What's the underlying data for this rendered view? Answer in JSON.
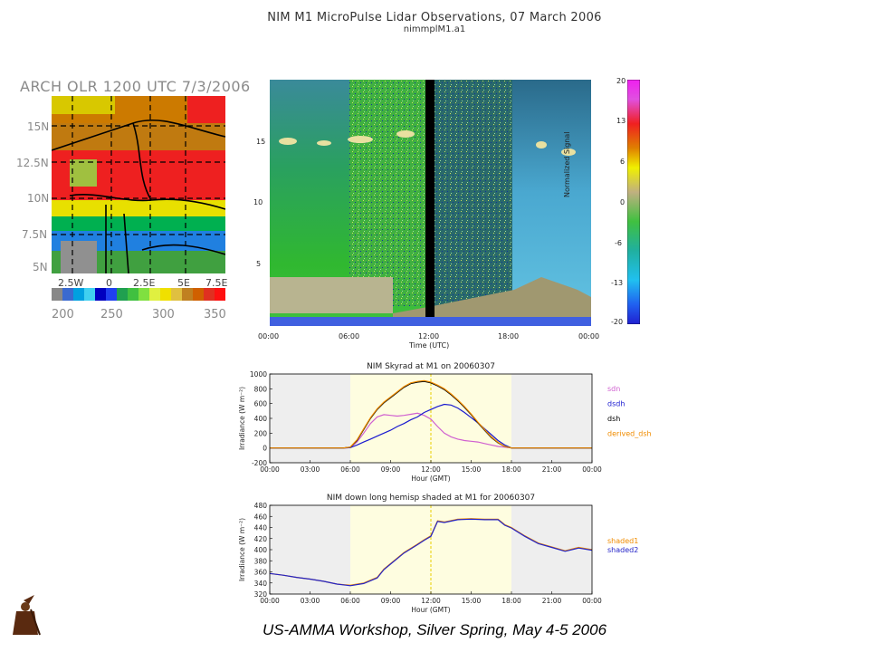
{
  "header": {
    "title": "NIM M1 MicroPulse Lidar Observations, 07 March 2006",
    "subtitle": "nimmplM1.a1"
  },
  "olr_map": {
    "title": "ARCH OLR 1200 UTC 7/3/2006",
    "lat_labels": [
      "15N",
      "12.5N",
      "10N",
      "7.5N",
      "5N"
    ],
    "lon_labels": [
      "2.5W",
      "0",
      "2.5E",
      "5E",
      "7.5E"
    ],
    "colorbar_labels": [
      "200",
      "250",
      "300",
      "350"
    ]
  },
  "lidar": {
    "xlabel": "Time (UTC)",
    "x_ticks": [
      "00:00",
      "06:00",
      "12:00",
      "18:00",
      "00:00"
    ],
    "y_ticks": [
      "5",
      "10",
      "15"
    ],
    "colorbar_title": "Normalized Signal",
    "colorbar_ticks": [
      "20",
      "13",
      "6",
      "0",
      "-6",
      "-13",
      "-20"
    ]
  },
  "colors": {
    "day_shade": "#fefde0",
    "night_shade": "#eeeeee",
    "sdn": "#d060d0",
    "dsdh": "#1a1ad0",
    "dsh": "#000000",
    "derived_dsh": "#f08c00",
    "shaded1": "#f08c00",
    "shaded2": "#2424c8",
    "noon_line": "#e8d000"
  },
  "chart_data": [
    {
      "type": "line",
      "title": "NIM Skyrad at M1 on 20060307",
      "xlabel": "Hour (GMT)",
      "ylabel": "Irradiance (W m⁻²)",
      "xlim": [
        0,
        24
      ],
      "ylim": [
        -200,
        1000
      ],
      "x_tick_labels": [
        "00:00",
        "03:00",
        "06:00",
        "09:00",
        "12:00",
        "15:00",
        "18:00",
        "21:00",
        "00:00"
      ],
      "y_tick_labels": [
        "-200",
        "0",
        "200",
        "400",
        "600",
        "800",
        "1000"
      ],
      "x": [
        0,
        5.5,
        6,
        6.5,
        7,
        7.5,
        8,
        8.5,
        9,
        9.5,
        10,
        10.5,
        11,
        11.5,
        12,
        12.5,
        13,
        13.5,
        14,
        14.5,
        15,
        15.5,
        16,
        16.5,
        17,
        17.5,
        18,
        24
      ],
      "series": [
        {
          "name": "sdn",
          "values": [
            0,
            0,
            5,
            80,
            200,
            330,
            420,
            450,
            440,
            430,
            440,
            455,
            470,
            440,
            390,
            290,
            200,
            150,
            120,
            100,
            90,
            80,
            60,
            40,
            20,
            10,
            0,
            0
          ]
        },
        {
          "name": "dsdh",
          "values": [
            0,
            0,
            5,
            40,
            80,
            120,
            160,
            200,
            240,
            290,
            330,
            380,
            420,
            480,
            520,
            560,
            590,
            580,
            540,
            480,
            410,
            340,
            260,
            180,
            100,
            40,
            0,
            0
          ]
        },
        {
          "name": "dsh",
          "values": [
            0,
            0,
            10,
            100,
            250,
            400,
            520,
            610,
            680,
            750,
            820,
            870,
            890,
            900,
            880,
            840,
            790,
            720,
            640,
            550,
            450,
            340,
            240,
            140,
            70,
            20,
            0,
            0
          ]
        },
        {
          "name": "derived_dsh",
          "values": [
            0,
            0,
            12,
            110,
            260,
            410,
            530,
            620,
            690,
            760,
            830,
            880,
            900,
            910,
            890,
            850,
            800,
            730,
            650,
            560,
            460,
            350,
            250,
            150,
            75,
            22,
            0,
            0
          ]
        }
      ],
      "day_span": [
        6,
        18
      ],
      "noon_marker": 12
    },
    {
      "type": "line",
      "title": "NIM down long hemisp shaded at M1 for 20060307",
      "xlabel": "Hour (GMT)",
      "ylabel": "Irradiance (W m⁻²)",
      "xlim": [
        0,
        24
      ],
      "ylim": [
        320,
        480
      ],
      "x_tick_labels": [
        "00:00",
        "03:00",
        "06:00",
        "09:00",
        "12:00",
        "15:00",
        "18:00",
        "21:00",
        "00:00"
      ],
      "y_tick_labels": [
        "320",
        "340",
        "360",
        "380",
        "400",
        "420",
        "440",
        "460",
        "480"
      ],
      "x": [
        0,
        1,
        2,
        3,
        4,
        5,
        6,
        7,
        8,
        8.5,
        9,
        10,
        11,
        11.5,
        12,
        12.5,
        13,
        14,
        15,
        16,
        17,
        17.5,
        18,
        19,
        20,
        21,
        22,
        23,
        24
      ],
      "series": [
        {
          "name": "shaded1",
          "values": [
            357,
            354,
            350,
            347,
            343,
            338,
            336,
            340,
            350,
            365,
            375,
            395,
            410,
            418,
            425,
            452,
            450,
            455,
            456,
            455,
            455,
            445,
            440,
            425,
            412,
            405,
            398,
            404,
            400
          ]
        },
        {
          "name": "shaded2",
          "values": [
            357,
            354,
            350,
            347,
            343,
            338,
            335,
            339,
            349,
            364,
            374,
            394,
            409,
            417,
            424,
            451,
            449,
            454,
            455,
            454,
            454,
            444,
            439,
            424,
            411,
            404,
            397,
            403,
            399
          ]
        }
      ],
      "day_span": [
        6,
        18
      ],
      "noon_marker": 12
    }
  ],
  "footer": {
    "text": "US-AMMA Workshop, Silver Spring, May 4-5 2006"
  }
}
